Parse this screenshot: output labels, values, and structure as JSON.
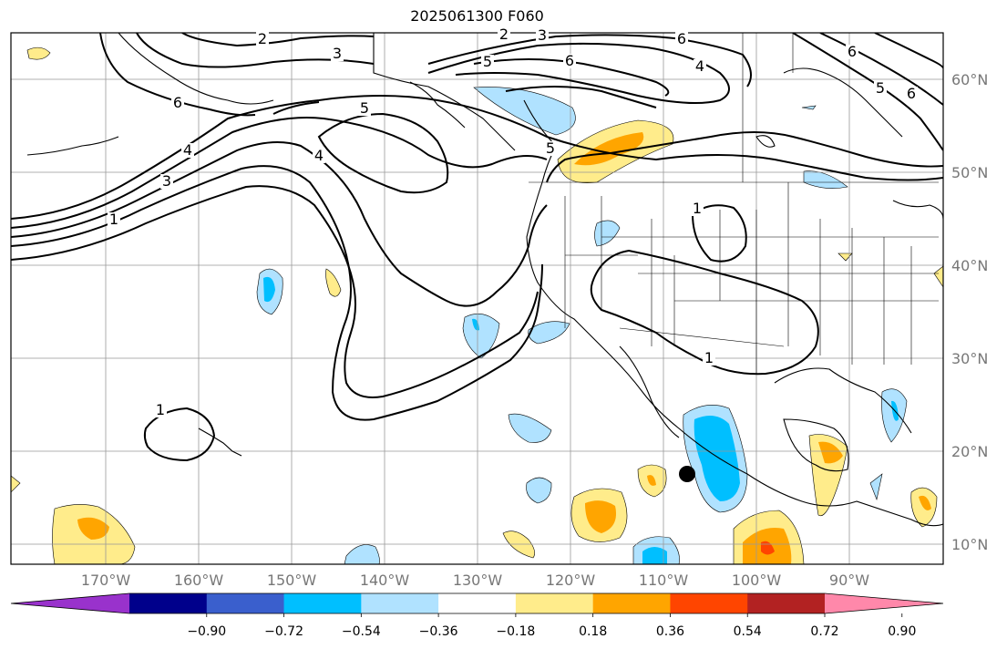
{
  "title": "2025061300 F060",
  "map": {
    "lon_labels": [
      "170°W",
      "160°W",
      "150°W",
      "140°W",
      "130°W",
      "120°W",
      "110°W",
      "100°W",
      "90°W"
    ],
    "lat_labels": [
      "60°N",
      "50°N",
      "40°N",
      "30°N",
      "20°N",
      "10°N"
    ],
    "grid": true,
    "contour_labels": [
      "2",
      "3",
      "6",
      "5",
      "4",
      "3",
      "2",
      "6",
      "5",
      "6",
      "4",
      "5",
      "6",
      "5",
      "6",
      "4",
      "3",
      "1",
      "1",
      "1",
      "1"
    ],
    "marker": "storm-center-dot"
  },
  "colorbar": {
    "tick_labels": [
      "−0.90",
      "−0.72",
      "−0.54",
      "−0.36",
      "−0.18",
      "0.18",
      "0.36",
      "0.54",
      "0.72",
      "0.90"
    ],
    "colors": [
      "#9932cc",
      "#00008b",
      "#3a5fcd",
      "#00bfff",
      "#b0e2ff",
      "#ffffff",
      "#ffec8b",
      "#ffa500",
      "#ff4500",
      "#b22222",
      "#ff88aa"
    ]
  }
}
